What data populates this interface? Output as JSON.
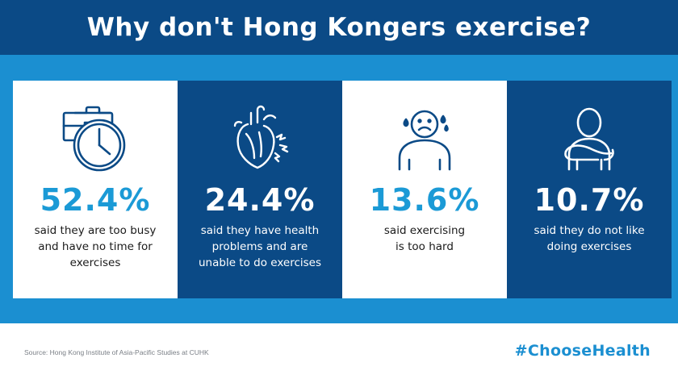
{
  "header": {
    "title": "Why don't Hong Kongers exercise?"
  },
  "stats": [
    {
      "value": "52.4%",
      "lines": [
        "said they are too busy",
        "and have no time for",
        "exercises"
      ],
      "icon": "briefcase-clock-icon"
    },
    {
      "value": "24.4%",
      "lines": [
        "said they have health",
        "problems and are",
        "unable to do exercises"
      ],
      "icon": "heart-icon"
    },
    {
      "value": "13.6%",
      "lines": [
        "said exercising",
        "is too hard"
      ],
      "icon": "sad-person-icon"
    },
    {
      "value": "10.7%",
      "lines": [
        "said they do not like",
        "doing exercises"
      ],
      "icon": "arms-crossed-person-icon"
    }
  ],
  "footer": {
    "source": "Source: Hong Kong Institute of Asia-Pacific Studies at CUHK",
    "hashtag": "#ChooseHealth"
  },
  "colors": {
    "navy": "#0b4a86",
    "blue": "#1b8fd1",
    "accent": "#1b9ad6"
  }
}
